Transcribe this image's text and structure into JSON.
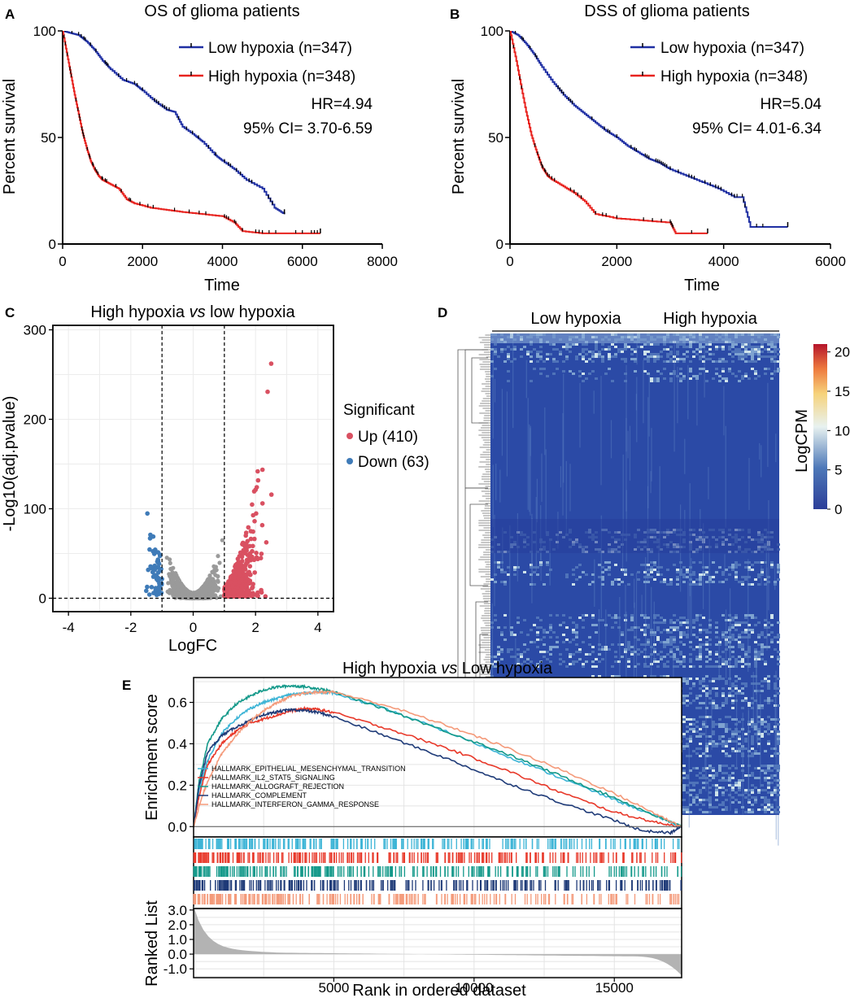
{
  "panel_labels": {
    "a": "A",
    "b": "B",
    "c": "C",
    "d": "D",
    "e": "E"
  },
  "colors": {
    "low": "#1f2fa3",
    "high": "#e8231f",
    "up": "#d95061",
    "down": "#3f7bb8",
    "ns": "#9a9a9a",
    "heat_low": "#2c3e99",
    "heat_mid": "#e8f2f0",
    "heat_high": "#b5152b"
  },
  "chart_data": [
    {
      "id": "os",
      "type": "line",
      "title": "OS of glioma patients",
      "xlabel": "Time",
      "ylabel": "Percent survival",
      "xlim": [
        0,
        8000
      ],
      "ylim": [
        0,
        100
      ],
      "xticks": [
        "0",
        "2000",
        "4000",
        "6000",
        "8000"
      ],
      "yticks": [
        "0",
        "50",
        "100"
      ],
      "xtick_values": [
        0,
        2000,
        4000,
        6000,
        8000
      ],
      "ytick_values": [
        0,
        50,
        100
      ],
      "legend": {
        "low": "Low hypoxia (n=347)",
        "high": "High hypoxia (n=348)"
      },
      "stats": {
        "hr": "HR=4.94",
        "ci": "95% CI= 3.70-6.59"
      },
      "series": [
        {
          "name": "Low hypoxia",
          "x": [
            0,
            200,
            400,
            600,
            800,
            1000,
            1200,
            1500,
            1800,
            2000,
            2300,
            2600,
            2800,
            3000,
            3300,
            3500,
            3800,
            4000,
            4300,
            4600,
            5000,
            5300,
            5550
          ],
          "y": [
            100,
            99,
            98,
            95,
            91,
            86,
            82,
            77,
            75,
            72,
            67,
            63,
            62,
            55,
            51,
            48,
            42,
            39,
            35,
            30,
            26,
            17,
            14
          ]
        },
        {
          "name": "High hypoxia",
          "x": [
            0,
            100,
            200,
            300,
            400,
            500,
            600,
            700,
            800,
            900,
            1000,
            1200,
            1400,
            1600,
            1800,
            2200,
            2600,
            3000,
            3500,
            4000,
            4300,
            4500,
            5000,
            6000,
            6450
          ],
          "y": [
            100,
            90,
            80,
            70,
            61,
            52,
            45,
            39,
            35,
            32,
            30,
            28,
            26,
            21,
            19,
            17,
            16,
            15,
            14,
            13,
            10,
            6,
            5,
            5,
            5
          ]
        }
      ]
    },
    {
      "id": "dss",
      "type": "line",
      "title": "DSS of glioma patients",
      "xlabel": "Time",
      "ylabel": "Percent survival",
      "xlim": [
        0,
        6000
      ],
      "ylim": [
        0,
        100
      ],
      "xticks": [
        "0",
        "2000",
        "4000",
        "6000"
      ],
      "yticks": [
        "0",
        "50",
        "100"
      ],
      "xtick_values": [
        0,
        2000,
        4000,
        6000
      ],
      "ytick_values": [
        0,
        50,
        100
      ],
      "legend": {
        "low": "Low hypoxia (n=347)",
        "high": "High hypoxia (n=348)"
      },
      "stats": {
        "hr": "HR=5.04",
        "ci": "95% CI= 4.01-6.34"
      },
      "series": [
        {
          "name": "Low hypoxia",
          "x": [
            0,
            150,
            300,
            450,
            600,
            800,
            1000,
            1200,
            1400,
            1600,
            1800,
            2000,
            2200,
            2400,
            2600,
            2800,
            3000,
            3300,
            3600,
            3900,
            4200,
            4350,
            4500,
            5200
          ],
          "y": [
            100,
            98,
            94,
            89,
            83,
            76,
            70,
            65,
            61,
            57,
            53,
            50,
            46,
            43,
            40,
            38,
            35,
            32,
            29,
            26,
            22,
            22,
            8,
            8
          ]
        },
        {
          "name": "High hypoxia",
          "x": [
            0,
            100,
            200,
            300,
            400,
            500,
            600,
            700,
            800,
            1000,
            1200,
            1400,
            1600,
            2000,
            2500,
            3000,
            3100,
            3700
          ],
          "y": [
            100,
            88,
            75,
            62,
            51,
            43,
            36,
            32,
            30,
            27,
            24,
            20,
            14,
            12,
            11,
            10,
            5,
            5
          ]
        }
      ]
    },
    {
      "id": "volcano",
      "type": "scatter",
      "title_prefix": "High hypoxia ",
      "title_em": "vs",
      "title_suffix": " low hypoxia",
      "xlabel": "LogFC",
      "ylabel": "-Log10(adj.pvalue)",
      "xlim": [
        -4.5,
        4.5
      ],
      "ylim": [
        -15,
        305
      ],
      "xticks": [
        "-4",
        "-2",
        "0",
        "2",
        "4"
      ],
      "yticks": [
        "0",
        "100",
        "200",
        "300"
      ],
      "xtick_values": [
        -4,
        -2,
        0,
        2,
        4
      ],
      "ytick_values": [
        0,
        100,
        200,
        300
      ],
      "thresholds": {
        "logfc": [
          -1,
          1
        ],
        "p": 0
      },
      "legend": {
        "title": "Significant",
        "up": "Up (410)",
        "down": "Down (63)"
      }
    },
    {
      "id": "heatmap",
      "type": "heatmap",
      "groups": [
        "Low hypoxia",
        "High hypoxia"
      ],
      "colorbar": {
        "label": "LogCPM",
        "ticks": [
          "0",
          "5",
          "10",
          "15",
          "20"
        ],
        "tick_values": [
          0,
          5,
          10,
          15,
          20
        ],
        "max": 21
      }
    },
    {
      "id": "gsea",
      "type": "line",
      "title_prefix": "High hypoxia ",
      "title_em": "vs",
      "title_suffix": " Low hypoxia",
      "ylabel_top": "Enrichment score",
      "ylabel_bottom": "Ranked List",
      "xlabel": "Rank in ordered dataset",
      "xlim": [
        0,
        17400
      ],
      "ylim_top": [
        -0.05,
        0.72
      ],
      "ylim_bottom": [
        -1.6,
        3.1
      ],
      "xticks": [
        "5000",
        "10000",
        "15000"
      ],
      "xtick_values": [
        5000,
        10000,
        15000
      ],
      "yticks_top": [
        "0.0",
        "0.2",
        "0.4",
        "0.6"
      ],
      "ytick_values_top": [
        0,
        0.2,
        0.4,
        0.6
      ],
      "yticks_bottom": [
        "3.0",
        "2.0",
        "1.0",
        "0.0",
        "-1.0"
      ],
      "ytick_values_bottom": [
        3,
        2,
        1,
        0,
        -1
      ],
      "series": [
        {
          "name": "HALLMARK_EPITHELIAL_MESENCHYMAL_TRANSITION",
          "color": "#3cb4d6",
          "x": [
            0,
            200,
            500,
            1000,
            1500,
            2000,
            2500,
            3000,
            3500,
            4000,
            4500,
            5000,
            7000,
            9000,
            11000,
            13000,
            15000,
            16500,
            17400
          ],
          "y": [
            0,
            0.18,
            0.32,
            0.45,
            0.52,
            0.57,
            0.6,
            0.62,
            0.64,
            0.645,
            0.65,
            0.645,
            0.56,
            0.46,
            0.35,
            0.24,
            0.13,
            0.05,
            0
          ]
        },
        {
          "name": "HALLMARK_IL2_STAT5_SIGNALING",
          "color": "#e8392a",
          "x": [
            0,
            200,
            500,
            1000,
            1500,
            2000,
            2500,
            3000,
            3500,
            4000,
            4500,
            5000,
            7000,
            9000,
            11000,
            13000,
            15000,
            16500,
            17400
          ],
          "y": [
            0,
            0.15,
            0.3,
            0.4,
            0.46,
            0.5,
            0.52,
            0.54,
            0.56,
            0.57,
            0.565,
            0.55,
            0.47,
            0.38,
            0.28,
            0.17,
            0.07,
            0.02,
            0
          ]
        },
        {
          "name": "HALLMARK_ALLOGRAFT_REJECTION",
          "color": "#14998a",
          "x": [
            0,
            200,
            500,
            1000,
            1500,
            2000,
            2500,
            3000,
            3500,
            4000,
            4500,
            5000,
            7000,
            9000,
            11000,
            13000,
            15000,
            16500,
            17400
          ],
          "y": [
            0,
            0.22,
            0.4,
            0.52,
            0.59,
            0.63,
            0.66,
            0.675,
            0.68,
            0.675,
            0.665,
            0.65,
            0.56,
            0.46,
            0.36,
            0.25,
            0.14,
            0.05,
            0
          ]
        },
        {
          "name": "HALLMARK_COMPLEMENT",
          "color": "#1f3b78",
          "x": [
            0,
            200,
            500,
            1000,
            1500,
            2000,
            2500,
            3000,
            3500,
            4000,
            4500,
            5000,
            7000,
            9000,
            11000,
            13000,
            15000,
            16000,
            17000,
            17400
          ],
          "y": [
            0,
            0.2,
            0.36,
            0.44,
            0.48,
            0.51,
            0.54,
            0.555,
            0.565,
            0.56,
            0.55,
            0.53,
            0.43,
            0.33,
            0.22,
            0.12,
            0.03,
            -0.02,
            -0.03,
            0
          ]
        },
        {
          "name": "HALLMARK_INTERFERON_GAMMA_RESPONSE",
          "color": "#f49a7a",
          "x": [
            0,
            200,
            500,
            1000,
            1500,
            2000,
            2500,
            3000,
            3500,
            4000,
            4500,
            5000,
            7000,
            9000,
            11000,
            13000,
            15000,
            16500,
            17400
          ],
          "y": [
            0,
            0.1,
            0.22,
            0.35,
            0.44,
            0.51,
            0.56,
            0.6,
            0.63,
            0.645,
            0.65,
            0.65,
            0.58,
            0.49,
            0.39,
            0.28,
            0.16,
            0.06,
            0
          ]
        }
      ]
    }
  ]
}
